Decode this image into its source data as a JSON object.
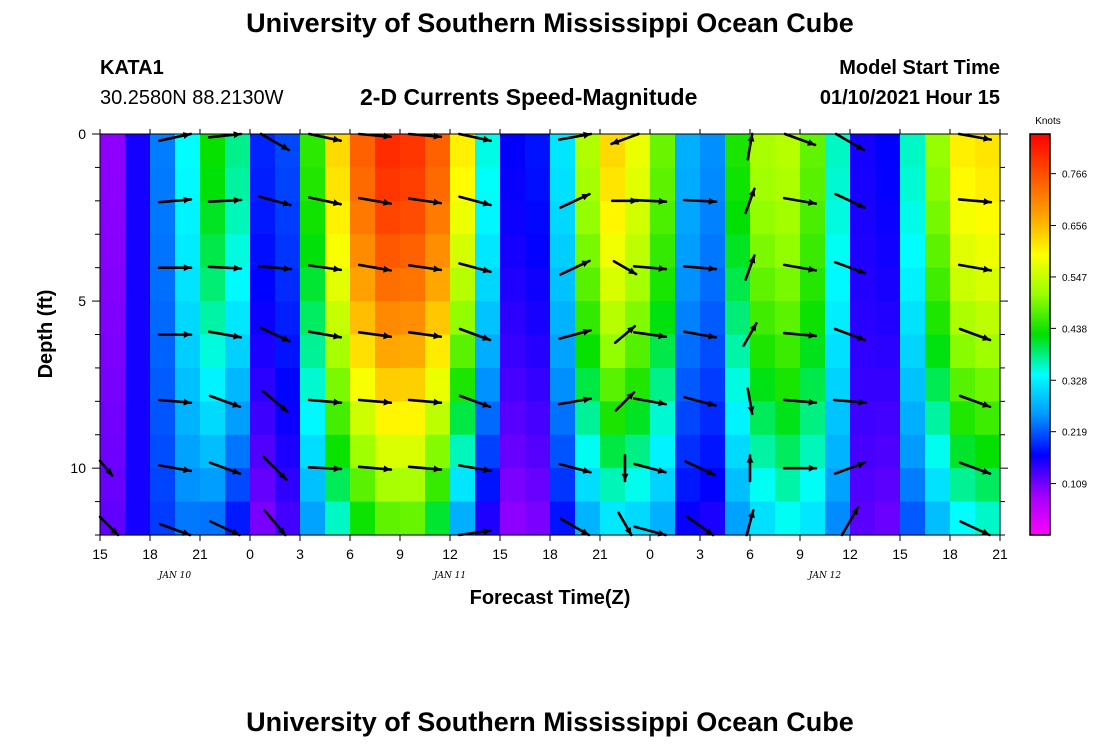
{
  "header": {
    "title": "University of Southern Mississippi Ocean Cube",
    "station": "KATA1",
    "coords": "30.2580N 88.2130W",
    "subtitle": "2-D Currents Speed-Magnitude",
    "model_label": "Model Start Time",
    "model_time": "01/10/2021 Hour 15"
  },
  "footer": {
    "title": "University of Southern Mississippi Ocean Cube"
  },
  "chart_data": {
    "type": "heatmap",
    "title": "2-D Currents Speed-Magnitude",
    "xlabel": "Forecast Time(Z)",
    "ylabel": "Depth (ft)",
    "x_ticks": [
      "15",
      "18",
      "21",
      "0",
      "3",
      "6",
      "9",
      "12",
      "15",
      "18",
      "21",
      "0",
      "3",
      "6",
      "9",
      "12",
      "15",
      "18",
      "21"
    ],
    "date_labels": [
      {
        "label": "JAN 10",
        "at_hour": 4.5
      },
      {
        "label": "JAN 11",
        "at_hour": 21
      },
      {
        "label": "JAN 12",
        "at_hour": 43.5
      }
    ],
    "x_range_hours": [
      0,
      54
    ],
    "y_ticks": [
      "0",
      "5",
      "10"
    ],
    "y_range_ft": [
      0,
      12
    ],
    "colorbar": {
      "unit": "Knots",
      "ticks": [
        "0.766",
        "0.656",
        "0.547",
        "0.438",
        "0.328",
        "0.219",
        "0.109"
      ],
      "range": [
        0.0,
        0.85
      ]
    },
    "profile_hours": [
      0,
      1.5,
      3,
      4.5,
      6,
      7.5,
      9,
      10.5,
      12,
      13.5,
      15,
      16.5,
      18,
      19.5,
      21,
      22.5,
      24,
      25.5,
      27,
      28.5,
      30,
      31.5,
      33,
      34.5,
      36,
      37.5,
      39,
      40.5,
      42,
      43.5,
      45,
      46.5,
      48,
      49.5,
      51,
      52.5,
      54
    ],
    "speed_surface_knots": [
      0.07,
      0.12,
      0.2,
      0.28,
      0.4,
      0.46,
      0.3,
      0.08,
      0.34,
      0.56,
      0.7,
      0.8,
      0.81,
      0.78,
      0.72,
      0.5,
      0.2,
      0.14,
      0.22,
      0.42,
      0.64,
      0.62,
      0.54,
      0.43,
      0.12,
      0.38,
      0.5,
      0.55,
      0.52,
      0.44,
      0.28,
      0.04,
      0.3,
      0.42,
      0.6,
      0.62,
      0.62
    ],
    "speed_bottom_knots": [
      0.1,
      0.14,
      0.18,
      0.22,
      0.24,
      0.2,
      0.14,
      0.06,
      0.2,
      0.3,
      0.38,
      0.44,
      0.47,
      0.45,
      0.32,
      0.18,
      0.1,
      0.08,
      0.12,
      0.22,
      0.3,
      0.3,
      0.28,
      0.24,
      0.08,
      0.22,
      0.28,
      0.32,
      0.34,
      0.28,
      0.2,
      0.04,
      0.18,
      0.24,
      0.3,
      0.34,
      0.34
    ],
    "arrow_depths_ft": [
      0,
      2,
      4,
      6,
      8,
      10,
      12
    ],
    "arrows": [
      {
        "hour": 0,
        "depth": 10,
        "angle": -50,
        "len": 0.6
      },
      {
        "hour": 0,
        "depth": 12,
        "angle": -45,
        "len": 0.8
      },
      {
        "hour": 4.5,
        "depth": 0,
        "angle": 12,
        "len": 1
      },
      {
        "hour": 4.5,
        "depth": 2,
        "angle": 5,
        "len": 1
      },
      {
        "hour": 4.5,
        "depth": 4,
        "angle": 0,
        "len": 1
      },
      {
        "hour": 4.5,
        "depth": 6,
        "angle": 0,
        "len": 1
      },
      {
        "hour": 4.5,
        "depth": 8,
        "angle": -5,
        "len": 1
      },
      {
        "hour": 4.5,
        "depth": 10,
        "angle": -10,
        "len": 1
      },
      {
        "hour": 4.5,
        "depth": 12,
        "angle": -20,
        "len": 1
      },
      {
        "hour": 7.5,
        "depth": 0,
        "angle": 6,
        "len": 1
      },
      {
        "hour": 7.5,
        "depth": 2,
        "angle": 3,
        "len": 1
      },
      {
        "hour": 7.5,
        "depth": 4,
        "angle": -3,
        "len": 1
      },
      {
        "hour": 7.5,
        "depth": 6,
        "angle": -10,
        "len": 1
      },
      {
        "hour": 7.5,
        "depth": 8,
        "angle": -20,
        "len": 1
      },
      {
        "hour": 7.5,
        "depth": 10,
        "angle": -20,
        "len": 1
      },
      {
        "hour": 7.5,
        "depth": 12,
        "angle": -25,
        "len": 1
      },
      {
        "hour": 10.5,
        "depth": 0,
        "angle": -30,
        "len": 1
      },
      {
        "hour": 10.5,
        "depth": 2,
        "angle": -15,
        "len": 1
      },
      {
        "hour": 10.5,
        "depth": 4,
        "angle": -5,
        "len": 1
      },
      {
        "hour": 10.5,
        "depth": 6,
        "angle": -25,
        "len": 1
      },
      {
        "hour": 10.5,
        "depth": 8,
        "angle": -40,
        "len": 1
      },
      {
        "hour": 10.5,
        "depth": 10,
        "angle": -45,
        "len": 1
      },
      {
        "hour": 10.5,
        "depth": 12,
        "angle": -50,
        "len": 1
      },
      {
        "hour": 13.5,
        "depth": 0,
        "angle": -12,
        "len": 1
      },
      {
        "hour": 13.5,
        "depth": 2,
        "angle": -12,
        "len": 1
      },
      {
        "hour": 13.5,
        "depth": 4,
        "angle": -8,
        "len": 1
      },
      {
        "hour": 13.5,
        "depth": 6,
        "angle": -10,
        "len": 1
      },
      {
        "hour": 13.5,
        "depth": 8,
        "angle": -5,
        "len": 1
      },
      {
        "hour": 13.5,
        "depth": 10,
        "angle": -3,
        "len": 1
      },
      {
        "hour": 16.5,
        "depth": 0,
        "angle": -5,
        "len": 1
      },
      {
        "hour": 16.5,
        "depth": 2,
        "angle": -10,
        "len": 1
      },
      {
        "hour": 16.5,
        "depth": 4,
        "angle": -10,
        "len": 1
      },
      {
        "hour": 16.5,
        "depth": 6,
        "angle": -8,
        "len": 1
      },
      {
        "hour": 16.5,
        "depth": 8,
        "angle": -5,
        "len": 1
      },
      {
        "hour": 16.5,
        "depth": 10,
        "angle": -5,
        "len": 1
      },
      {
        "hour": 19.5,
        "depth": 0,
        "angle": -5,
        "len": 1
      },
      {
        "hour": 19.5,
        "depth": 2,
        "angle": -8,
        "len": 1
      },
      {
        "hour": 19.5,
        "depth": 4,
        "angle": -8,
        "len": 1
      },
      {
        "hour": 19.5,
        "depth": 6,
        "angle": -8,
        "len": 1
      },
      {
        "hour": 19.5,
        "depth": 8,
        "angle": -5,
        "len": 1
      },
      {
        "hour": 19.5,
        "depth": 10,
        "angle": -5,
        "len": 1
      },
      {
        "hour": 22.5,
        "depth": 0,
        "angle": -12,
        "len": 1
      },
      {
        "hour": 22.5,
        "depth": 2,
        "angle": -15,
        "len": 1
      },
      {
        "hour": 22.5,
        "depth": 4,
        "angle": -15,
        "len": 1
      },
      {
        "hour": 22.5,
        "depth": 6,
        "angle": -20,
        "len": 1
      },
      {
        "hour": 22.5,
        "depth": 8,
        "angle": -20,
        "len": 1
      },
      {
        "hour": 22.5,
        "depth": 10,
        "angle": -10,
        "len": 1
      },
      {
        "hour": 22.5,
        "depth": 12,
        "angle": 8,
        "len": 1
      },
      {
        "hour": 28.5,
        "depth": 0,
        "angle": 10,
        "len": 1
      },
      {
        "hour": 28.5,
        "depth": 2,
        "angle": 25,
        "len": 1
      },
      {
        "hour": 28.5,
        "depth": 4,
        "angle": 25,
        "len": 1
      },
      {
        "hour": 28.5,
        "depth": 6,
        "angle": 15,
        "len": 1
      },
      {
        "hour": 28.5,
        "depth": 8,
        "angle": 10,
        "len": 1
      },
      {
        "hour": 28.5,
        "depth": 10,
        "angle": -15,
        "len": 1
      },
      {
        "hour": 28.5,
        "depth": 12,
        "angle": -30,
        "len": 1
      },
      {
        "hour": 31.5,
        "depth": 0,
        "angle": -160,
        "len": 0.9
      },
      {
        "hour": 31.5,
        "depth": 2,
        "angle": 0,
        "len": 0.8
      },
      {
        "hour": 31.5,
        "depth": 4,
        "angle": -30,
        "len": 0.8
      },
      {
        "hour": 31.5,
        "depth": 6,
        "angle": 40,
        "len": 0.8
      },
      {
        "hour": 31.5,
        "depth": 8,
        "angle": 45,
        "len": 0.8
      },
      {
        "hour": 31.5,
        "depth": 10,
        "angle": -90,
        "len": 0.8
      },
      {
        "hour": 31.5,
        "depth": 12,
        "angle": -60,
        "len": 0.8
      },
      {
        "hour": 33,
        "depth": 2,
        "angle": -3,
        "len": 1
      },
      {
        "hour": 33,
        "depth": 4,
        "angle": -5,
        "len": 1
      },
      {
        "hour": 33,
        "depth": 6,
        "angle": -8,
        "len": 1
      },
      {
        "hour": 33,
        "depth": 8,
        "angle": -10,
        "len": 1
      },
      {
        "hour": 33,
        "depth": 10,
        "angle": -15,
        "len": 1
      },
      {
        "hour": 33,
        "depth": 12,
        "angle": -15,
        "len": 1
      },
      {
        "hour": 36,
        "depth": 2,
        "angle": -3,
        "len": 1
      },
      {
        "hour": 36,
        "depth": 4,
        "angle": -5,
        "len": 1
      },
      {
        "hour": 36,
        "depth": 6,
        "angle": -10,
        "len": 1
      },
      {
        "hour": 36,
        "depth": 8,
        "angle": -15,
        "len": 1
      },
      {
        "hour": 36,
        "depth": 10,
        "angle": -25,
        "len": 1
      },
      {
        "hour": 36,
        "depth": 12,
        "angle": -35,
        "len": 1
      },
      {
        "hour": 39,
        "depth": 0,
        "angle": 80,
        "len": 0.8
      },
      {
        "hour": 39,
        "depth": 2,
        "angle": 70,
        "len": 0.8
      },
      {
        "hour": 39,
        "depth": 4,
        "angle": 70,
        "len": 0.8
      },
      {
        "hour": 39,
        "depth": 6,
        "angle": 60,
        "len": 0.8
      },
      {
        "hour": 39,
        "depth": 8,
        "angle": -80,
        "len": 0.8
      },
      {
        "hour": 39,
        "depth": 10,
        "angle": 90,
        "len": 0.8
      },
      {
        "hour": 39,
        "depth": 12,
        "angle": 75,
        "len": 0.8
      },
      {
        "hour": 42,
        "depth": 0,
        "angle": -20,
        "len": 1
      },
      {
        "hour": 42,
        "depth": 2,
        "angle": -10,
        "len": 1
      },
      {
        "hour": 42,
        "depth": 4,
        "angle": -10,
        "len": 1
      },
      {
        "hour": 42,
        "depth": 6,
        "angle": -5,
        "len": 1
      },
      {
        "hour": 42,
        "depth": 8,
        "angle": -5,
        "len": 1
      },
      {
        "hour": 42,
        "depth": 10,
        "angle": 0,
        "len": 1
      },
      {
        "hour": 45,
        "depth": 0,
        "angle": -30,
        "len": 1
      },
      {
        "hour": 45,
        "depth": 2,
        "angle": -25,
        "len": 1
      },
      {
        "hour": 45,
        "depth": 4,
        "angle": -20,
        "len": 1
      },
      {
        "hour": 45,
        "depth": 6,
        "angle": -20,
        "len": 1
      },
      {
        "hour": 45,
        "depth": 8,
        "angle": -5,
        "len": 1
      },
      {
        "hour": 45,
        "depth": 10,
        "angle": 20,
        "len": 1
      },
      {
        "hour": 45,
        "depth": 12,
        "angle": 60,
        "len": 1
      },
      {
        "hour": 52.5,
        "depth": 0,
        "angle": -10,
        "len": 1
      },
      {
        "hour": 52.5,
        "depth": 2,
        "angle": -5,
        "len": 1
      },
      {
        "hour": 52.5,
        "depth": 4,
        "angle": -10,
        "len": 1
      },
      {
        "hour": 52.5,
        "depth": 6,
        "angle": -20,
        "len": 1
      },
      {
        "hour": 52.5,
        "depth": 8,
        "angle": -20,
        "len": 1
      },
      {
        "hour": 52.5,
        "depth": 10,
        "angle": -20,
        "len": 1
      },
      {
        "hour": 52.5,
        "depth": 12,
        "angle": -25,
        "len": 1
      }
    ]
  }
}
